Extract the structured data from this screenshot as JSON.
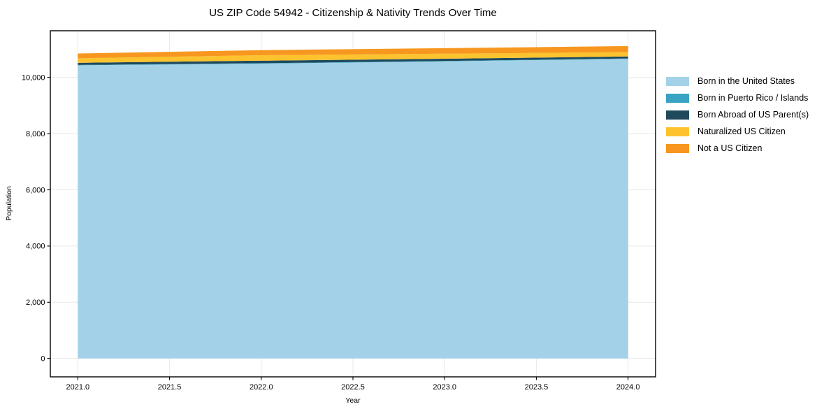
{
  "chart_data": {
    "type": "area",
    "stacked": true,
    "title": "US ZIP Code 54942 - Citizenship & Nativity Trends Over Time",
    "xlabel": "Year",
    "ylabel": "Population",
    "x": [
      2021,
      2022,
      2023,
      2024
    ],
    "series": [
      {
        "name": "Born in the United States",
        "color": "#a3d2e8",
        "values": [
          10430,
          10490,
          10570,
          10660
        ]
      },
      {
        "name": "Born in Puerto Rico / Islands",
        "color": "#38a3c2",
        "values": [
          15,
          15,
          15,
          15
        ]
      },
      {
        "name": "Born Abroad of US Parent(s)",
        "color": "#1f4a5e",
        "values": [
          75,
          90,
          80,
          70
        ]
      },
      {
        "name": "Naturalized US Citizen",
        "color": "#fcc32f",
        "values": [
          160,
          195,
          180,
          155
        ]
      },
      {
        "name": "Not a US Citizen",
        "color": "#f7971f",
        "values": [
          170,
          180,
          195,
          215
        ]
      }
    ],
    "x_ticks": [
      "2021.0",
      "2021.5",
      "2022.0",
      "2022.5",
      "2023.0",
      "2023.5",
      "2024.0"
    ],
    "x_tick_values": [
      2021,
      2021.5,
      2022,
      2022.5,
      2023,
      2023.5,
      2024
    ],
    "y_ticks": [
      "0",
      "2,000",
      "4,000",
      "6,000",
      "8,000",
      "10,000"
    ],
    "y_tick_values": [
      0,
      2000,
      4000,
      6000,
      8000,
      10000
    ],
    "xlim": [
      2020.85,
      2024.15
    ],
    "ylim": [
      -655,
      11660
    ],
    "grid": true,
    "grid_color": "#e8e8e8",
    "axis_color": "#000000",
    "legend_position": "right"
  }
}
